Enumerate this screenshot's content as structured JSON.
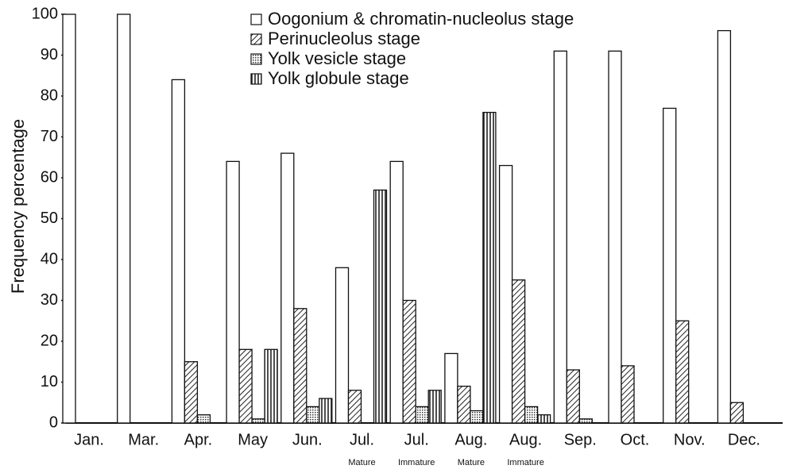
{
  "chart_data": {
    "type": "bar",
    "y_label": "Frequency percentage",
    "categories": [
      "Jan.",
      "Mar.",
      "Apr.",
      "May",
      "Jun.",
      "Jul.",
      "Jul.",
      "Aug.",
      "Aug.",
      "Sep.",
      "Oct.",
      "Nov.",
      "Dec."
    ],
    "group_labels": [
      null,
      null,
      null,
      null,
      null,
      "Mature",
      "Immature",
      "Mature",
      "Immature",
      null,
      null,
      null,
      null
    ],
    "series": [
      {
        "name": "Oogonium & chromatin-nucleolus stage",
        "color": "#ffffff",
        "pattern": "none",
        "values": [
          100,
          100,
          84,
          64,
          66,
          38,
          64,
          17,
          63,
          91,
          91,
          77,
          96
        ]
      },
      {
        "name": "Perinucleolus stage",
        "color": "#ffffff",
        "pattern": "diagonal",
        "values": [
          0,
          0,
          15,
          18,
          28,
          8,
          30,
          9,
          35,
          13,
          14,
          25,
          5
        ]
      },
      {
        "name": "Yolk vesicle stage",
        "color": "#ffffff",
        "pattern": "dots",
        "values": [
          0,
          0,
          2,
          1,
          4,
          0,
          4,
          3,
          4,
          1,
          0,
          0,
          0
        ]
      },
      {
        "name": "Yolk globule stage",
        "color": "#ffffff",
        "pattern": "vertical",
        "values": [
          0,
          0,
          0,
          18,
          6,
          57,
          8,
          76,
          2,
          0,
          0,
          0,
          0
        ]
      }
    ],
    "ylim": [
      0,
      100
    ],
    "yticks": [
      0,
      10,
      20,
      30,
      40,
      50,
      60,
      70,
      80,
      90,
      100
    ],
    "grid": false
  }
}
